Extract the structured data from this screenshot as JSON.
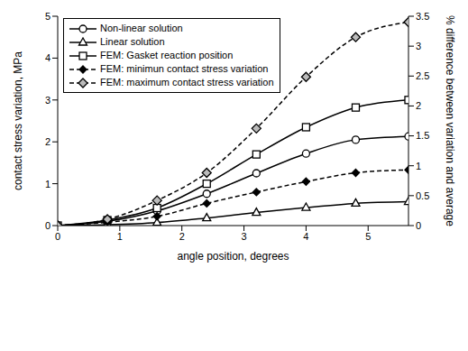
{
  "chart_data": {
    "type": "line",
    "x_label": "angle position, degrees",
    "y_label": "contact stress variation, MPa",
    "y2_label": "% difference between variation and average",
    "x": [
      0,
      0.8,
      1.6,
      2.4,
      3.2,
      4.0,
      4.8,
      5.65
    ],
    "xlim": [
      0,
      5.65
    ],
    "xticks": [
      0,
      1,
      2,
      3,
      4,
      5
    ],
    "ylim": [
      0,
      5
    ],
    "yticks": [
      0,
      1,
      2,
      3,
      4,
      5
    ],
    "y2lim": [
      0,
      3.5
    ],
    "y2ticks": [
      0,
      0.5,
      1,
      1.5,
      2,
      2.5,
      3,
      3.5
    ],
    "legend": "upper left",
    "series": [
      {
        "name": "Non-linear solution",
        "color": "#000000",
        "marker": "circle",
        "line_style": "solid",
        "values": [
          0,
          0.1,
          0.35,
          0.76,
          1.25,
          1.72,
          2.05,
          2.13
        ]
      },
      {
        "name": "Linear solution",
        "color": "#000000",
        "marker": "triangle",
        "line_style": "solid",
        "values": [
          0,
          0.02,
          0.07,
          0.18,
          0.31,
          0.43,
          0.53,
          0.57
        ]
      },
      {
        "name": "FEM: Gasket reaction position",
        "color": "#000000",
        "marker": "square",
        "line_style": "solid",
        "values": [
          0,
          0.13,
          0.42,
          1.0,
          1.7,
          2.35,
          2.82,
          3.0
        ]
      },
      {
        "name": "FEM: minimun contact stress variation",
        "color": "#000000",
        "marker": "filled_diamond",
        "line_style": "dashed",
        "values": [
          0,
          0.08,
          0.22,
          0.53,
          0.8,
          1.05,
          1.26,
          1.33
        ]
      },
      {
        "name": "FEM: maximum contact stress variation",
        "color": "#000000",
        "marker": "diamond",
        "line_style": "dashed",
        "values": [
          0,
          0.15,
          0.6,
          1.26,
          2.32,
          3.55,
          4.5,
          4.86
        ]
      }
    ]
  }
}
